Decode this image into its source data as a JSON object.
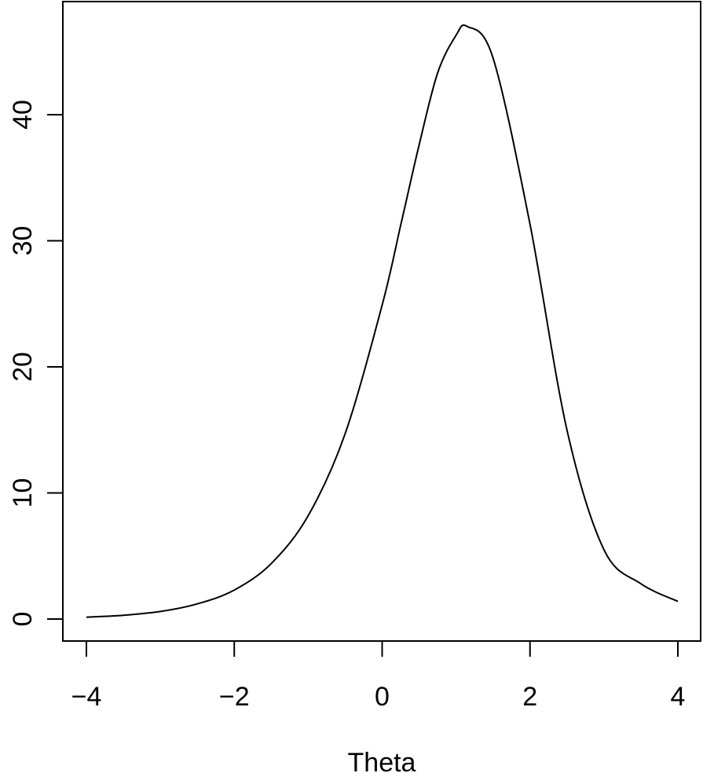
{
  "chart_data": {
    "type": "line",
    "title": "",
    "xlabel": "Theta",
    "ylabel": "",
    "xlim": [
      -4,
      4
    ],
    "ylim": [
      0,
      45
    ],
    "xticks": [
      "−4",
      "−2",
      "0",
      "2",
      "4"
    ],
    "xtick_values": [
      -4,
      -2,
      0,
      2,
      4
    ],
    "yticks": [
      "0",
      "10",
      "20",
      "30",
      "40"
    ],
    "ytick_values": [
      0,
      10,
      20,
      30,
      40
    ],
    "grid": false,
    "line_color": "#000000",
    "series": [
      {
        "x": [
          -4,
          -3.5,
          -3,
          -2.5,
          -2,
          -1.5,
          -1,
          -0.5,
          0,
          0.25,
          0.5,
          0.75,
          1,
          1.15,
          1.5,
          2,
          2.5,
          3,
          3.5,
          4
        ],
        "values": [
          0.15,
          0.3,
          0.6,
          1.2,
          2.3,
          4.4,
          8.2,
          14.7,
          24.9,
          31.2,
          37.6,
          43.3,
          46.3,
          47.0,
          44.5,
          31.3,
          15.0,
          5.5,
          2.8,
          1.4
        ]
      }
    ]
  }
}
